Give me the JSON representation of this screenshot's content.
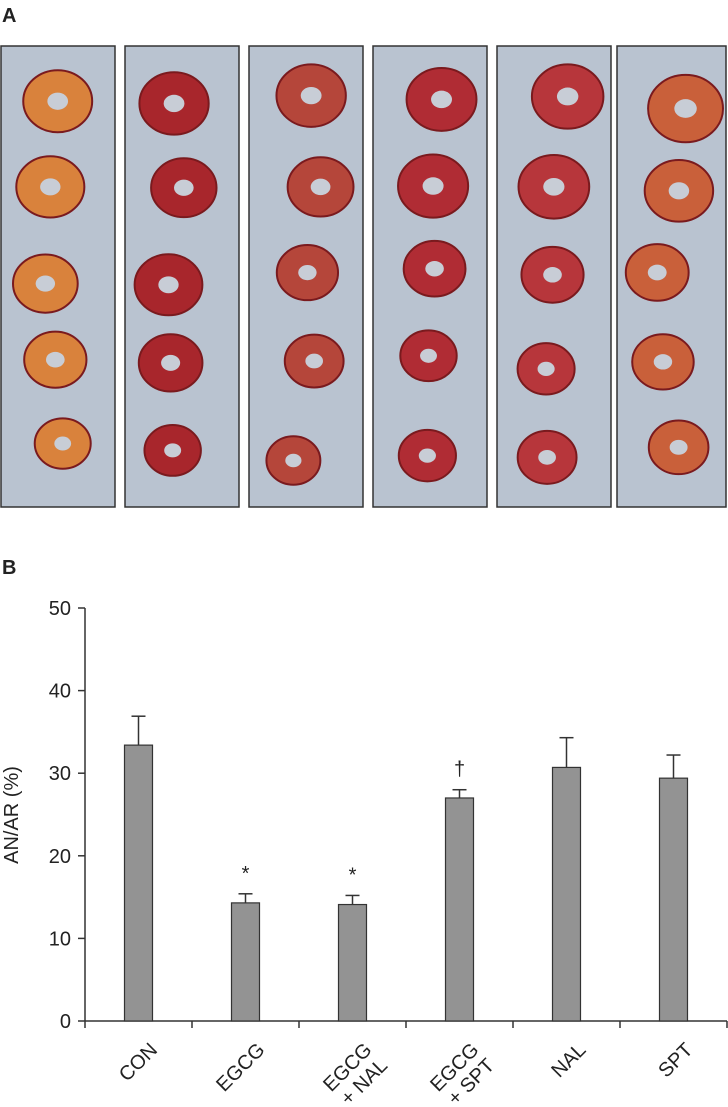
{
  "panel_labels": [
    "A",
    "B"
  ],
  "chart_data": {
    "type": "bar",
    "y_label": "AN/AR (%)",
    "categories": [
      "CON",
      "EGCG",
      "EGCG\n+ NAL",
      "EGCG\n+ SPT",
      "NAL",
      "SPT"
    ],
    "values": [
      33.4,
      14.3,
      14.1,
      27.0,
      30.7,
      29.4
    ],
    "errors": [
      3.5,
      1.1,
      1.1,
      1.0,
      3.6,
      2.8
    ],
    "annotations": [
      {
        "category": "EGCG",
        "text": "*"
      },
      {
        "category": "EGCG\n+ NAL",
        "text": "*"
      },
      {
        "category": "EGCG\n+ SPT",
        "text": "†"
      }
    ],
    "color": "#939393",
    "ylim": [
      0,
      50
    ],
    "yticks": [
      0,
      10,
      20,
      30,
      40,
      50
    ],
    "grid": false
  }
}
